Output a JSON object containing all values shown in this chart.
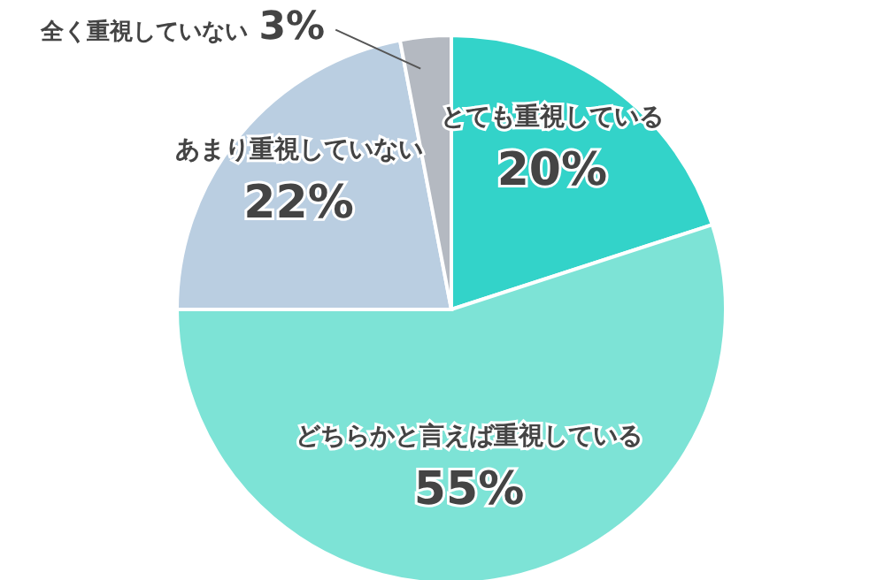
{
  "chart_data": {
    "type": "pie",
    "categories": [
      "とても重視している",
      "どちらかと言えば重視している",
      "あまり重視していない",
      "全く重視していない"
    ],
    "values": [
      20,
      55,
      22,
      3
    ],
    "value_labels": [
      "20%",
      "55%",
      "22%",
      "3%"
    ],
    "colors": [
      "#33d3c9",
      "#7de3d6",
      "#bacee1",
      "#b4b9c1"
    ],
    "legend": false
  }
}
